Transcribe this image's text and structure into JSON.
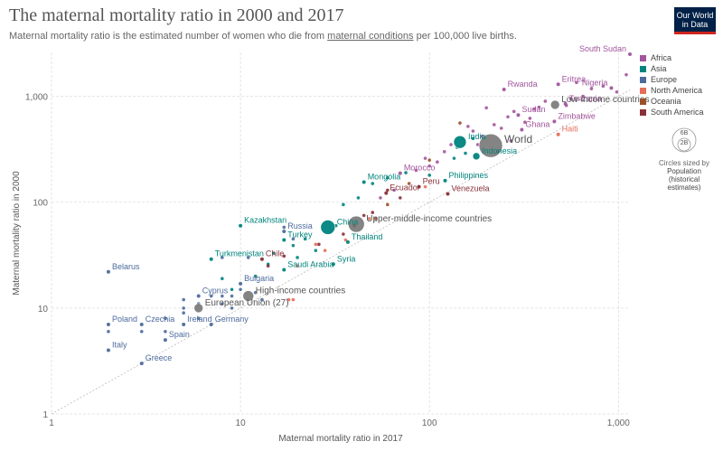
{
  "header": {
    "title": "The maternal mortality ratio in 2000 and 2017",
    "subtitle_pre": "Maternal mortality ratio is the estimated number of women who die from ",
    "subtitle_link": "maternal conditions",
    "subtitle_post": " per 100,000 live births.",
    "logo_line1": "Our World",
    "logo_line2": "in Data"
  },
  "legend": {
    "items": [
      {
        "label": "Africa",
        "color": "#a2559c"
      },
      {
        "label": "Asia",
        "color": "#00847e"
      },
      {
        "label": "Europe",
        "color": "#4c6a9c"
      },
      {
        "label": "North America",
        "color": "#e56e5a"
      },
      {
        "label": "Oceania",
        "color": "#9a5129"
      },
      {
        "label": "South America",
        "color": "#883039"
      }
    ],
    "size_big": "6B",
    "size_small": "2B",
    "size_note": "Circles sized by",
    "size_var_1": "Population",
    "size_var_2": "(historical",
    "size_var_3": "estimates)"
  },
  "chart_data": {
    "type": "scatter",
    "x_scale": "log",
    "y_scale": "log",
    "xlabel": "Maternal mortality ratio in 2017",
    "ylabel": "Maternal mortality ratio in 2000",
    "xlim": [
      1,
      1150
    ],
    "ylim": [
      1,
      2600
    ],
    "x_ticks": [
      {
        "v": 1,
        "label": "1"
      },
      {
        "v": 10,
        "label": "10"
      },
      {
        "v": 100,
        "label": "100"
      },
      {
        "v": 1000,
        "label": "1,000"
      }
    ],
    "y_ticks": [
      {
        "v": 1,
        "label": "1"
      },
      {
        "v": 10,
        "label": "10"
      },
      {
        "v": 100,
        "label": "100"
      },
      {
        "v": 1000,
        "label": "1,000"
      }
    ],
    "reference_line": "y = x",
    "labeled_points": [
      {
        "name": "South Sudan",
        "x": 1150,
        "y": 2500,
        "region": "Africa",
        "label": true
      },
      {
        "name": "Eritrea",
        "x": 480,
        "y": 1300,
        "region": "Africa",
        "label": true
      },
      {
        "name": "Nigeria",
        "x": 917,
        "y": 1200,
        "region": "Africa",
        "label": true
      },
      {
        "name": "Rwanda",
        "x": 248,
        "y": 1160,
        "region": "Africa",
        "label": true
      },
      {
        "name": "Tanzania",
        "x": 524,
        "y": 850,
        "region": "Africa",
        "label": true
      },
      {
        "name": "Low-income countries",
        "x": 462,
        "y": 833,
        "region": "Aggregate",
        "label": true,
        "size": 5
      },
      {
        "name": "Sudan",
        "x": 295,
        "y": 667,
        "region": "Africa",
        "label": true
      },
      {
        "name": "Zimbabwe",
        "x": 458,
        "y": 579,
        "region": "Africa",
        "label": true
      },
      {
        "name": "Ghana",
        "x": 308,
        "y": 484,
        "region": "Africa",
        "label": true
      },
      {
        "name": "Haiti",
        "x": 480,
        "y": 437,
        "region": "North America",
        "label": true
      },
      {
        "name": "World",
        "x": 211,
        "y": 342,
        "region": "Aggregate",
        "label": true,
        "size": 13
      },
      {
        "name": "India",
        "x": 145,
        "y": 370,
        "region": "Asia",
        "label": true,
        "size": 7
      },
      {
        "name": "Indonesia",
        "x": 177,
        "y": 272,
        "region": "Asia",
        "label": true,
        "size": 4
      },
      {
        "name": "Morocco",
        "x": 70,
        "y": 188,
        "region": "Africa",
        "label": true
      },
      {
        "name": "Mongolia",
        "x": 45,
        "y": 155,
        "region": "Asia",
        "label": true
      },
      {
        "name": "Philippines",
        "x": 121,
        "y": 160,
        "region": "Asia",
        "label": true
      },
      {
        "name": "Peru",
        "x": 88,
        "y": 140,
        "region": "South America",
        "label": true
      },
      {
        "name": "Ecuador",
        "x": 59,
        "y": 122,
        "region": "South America",
        "label": true
      },
      {
        "name": "Venezuela",
        "x": 125,
        "y": 120,
        "region": "South America",
        "label": true
      },
      {
        "name": "Upper-middle-income countries",
        "x": 41,
        "y": 62,
        "region": "Aggregate",
        "label": true,
        "size": 9
      },
      {
        "name": "China",
        "x": 29,
        "y": 58,
        "region": "Asia",
        "label": true,
        "size": 8
      },
      {
        "name": "Kazakhstan",
        "x": 10,
        "y": 60,
        "region": "Asia",
        "label": true
      },
      {
        "name": "Russia",
        "x": 17,
        "y": 53,
        "region": "Europe",
        "label": true
      },
      {
        "name": "Turkey",
        "x": 17,
        "y": 44,
        "region": "Asia",
        "label": true
      },
      {
        "name": "Thailand",
        "x": 37,
        "y": 42,
        "region": "Asia",
        "label": true
      },
      {
        "name": "Chile",
        "x": 13,
        "y": 29,
        "region": "South America",
        "label": true
      },
      {
        "name": "Turkmenistan",
        "x": 7,
        "y": 29,
        "region": "Asia",
        "label": true
      },
      {
        "name": "Syria",
        "x": 31,
        "y": 26,
        "region": "Asia",
        "label": true
      },
      {
        "name": "Saudi Arabia",
        "x": 17,
        "y": 23,
        "region": "Asia",
        "label": true
      },
      {
        "name": "Belarus",
        "x": 2,
        "y": 22,
        "region": "Europe",
        "label": true
      },
      {
        "name": "Bulgaria",
        "x": 10,
        "y": 17,
        "region": "Europe",
        "label": true
      },
      {
        "name": "High-income countries",
        "x": 11,
        "y": 13,
        "region": "Aggregate",
        "label": true,
        "size": 6
      },
      {
        "name": "Cyprus",
        "x": 6,
        "y": 13,
        "region": "Europe",
        "label": true
      },
      {
        "name": "European Union (27)",
        "x": 6,
        "y": 10,
        "region": "Aggregate",
        "label": true,
        "size": 5
      },
      {
        "name": "Poland",
        "x": 2,
        "y": 7,
        "region": "Europe",
        "label": true
      },
      {
        "name": "Czechia",
        "x": 3,
        "y": 7,
        "region": "Europe",
        "label": true
      },
      {
        "name": "Ireland",
        "x": 5,
        "y": 7,
        "region": "Europe",
        "label": true
      },
      {
        "name": "Germany",
        "x": 7,
        "y": 7,
        "region": "Europe",
        "label": true
      },
      {
        "name": "Spain",
        "x": 4,
        "y": 5,
        "region": "Europe",
        "label": true
      },
      {
        "name": "Italy",
        "x": 2,
        "y": 4,
        "region": "Europe",
        "label": true
      },
      {
        "name": "Greece",
        "x": 3,
        "y": 3,
        "region": "Europe",
        "label": true
      }
    ],
    "unlabeled_points": [
      {
        "x": 1100,
        "y": 1600,
        "region": "Africa"
      },
      {
        "x": 980,
        "y": 1100,
        "region": "Africa"
      },
      {
        "x": 830,
        "y": 1250,
        "region": "Africa"
      },
      {
        "x": 720,
        "y": 1180,
        "region": "Africa"
      },
      {
        "x": 650,
        "y": 1000,
        "region": "Africa"
      },
      {
        "x": 600,
        "y": 1350,
        "region": "Africa"
      },
      {
        "x": 560,
        "y": 950,
        "region": "Africa"
      },
      {
        "x": 530,
        "y": 820,
        "region": "Africa"
      },
      {
        "x": 410,
        "y": 900,
        "region": "Africa"
      },
      {
        "x": 380,
        "y": 790,
        "region": "Africa"
      },
      {
        "x": 360,
        "y": 760,
        "region": "Africa"
      },
      {
        "x": 340,
        "y": 620,
        "region": "Africa"
      },
      {
        "x": 320,
        "y": 570,
        "region": "Africa"
      },
      {
        "x": 280,
        "y": 720,
        "region": "Africa"
      },
      {
        "x": 260,
        "y": 640,
        "region": "Africa"
      },
      {
        "x": 240,
        "y": 500,
        "region": "Africa"
      },
      {
        "x": 220,
        "y": 540,
        "region": "Africa"
      },
      {
        "x": 200,
        "y": 780,
        "region": "Africa"
      },
      {
        "x": 190,
        "y": 420,
        "region": "Africa"
      },
      {
        "x": 170,
        "y": 470,
        "region": "Africa"
      },
      {
        "x": 160,
        "y": 520,
        "region": "Africa"
      },
      {
        "x": 150,
        "y": 400,
        "region": "Africa"
      },
      {
        "x": 130,
        "y": 350,
        "region": "Africa"
      },
      {
        "x": 120,
        "y": 300,
        "region": "Africa"
      },
      {
        "x": 110,
        "y": 240,
        "region": "Africa"
      },
      {
        "x": 100,
        "y": 220,
        "region": "Africa"
      },
      {
        "x": 95,
        "y": 260,
        "region": "Africa"
      },
      {
        "x": 85,
        "y": 200,
        "region": "Africa"
      },
      {
        "x": 65,
        "y": 130,
        "region": "Africa"
      },
      {
        "x": 55,
        "y": 110,
        "region": "Africa"
      },
      {
        "x": 270,
        "y": 380,
        "region": "Africa"
      },
      {
        "x": 230,
        "y": 300,
        "region": "Africa"
      },
      {
        "x": 180,
        "y": 350,
        "region": "Africa"
      },
      {
        "x": 140,
        "y": 330,
        "region": "Asia"
      },
      {
        "x": 170,
        "y": 400,
        "region": "Asia"
      },
      {
        "x": 155,
        "y": 290,
        "region": "Asia"
      },
      {
        "x": 135,
        "y": 260,
        "region": "Asia"
      },
      {
        "x": 100,
        "y": 180,
        "region": "Asia"
      },
      {
        "x": 75,
        "y": 190,
        "region": "Asia"
      },
      {
        "x": 60,
        "y": 170,
        "region": "Asia"
      },
      {
        "x": 50,
        "y": 150,
        "region": "Asia"
      },
      {
        "x": 42,
        "y": 110,
        "region": "Asia"
      },
      {
        "x": 35,
        "y": 95,
        "region": "Asia"
      },
      {
        "x": 32,
        "y": 60,
        "region": "Asia"
      },
      {
        "x": 25,
        "y": 35,
        "region": "Asia"
      },
      {
        "x": 22,
        "y": 45,
        "region": "Asia"
      },
      {
        "x": 20,
        "y": 30,
        "region": "Asia"
      },
      {
        "x": 19,
        "y": 39,
        "region": "Asia"
      },
      {
        "x": 15,
        "y": 33,
        "region": "Asia"
      },
      {
        "x": 12,
        "y": 20,
        "region": "Asia"
      },
      {
        "x": 9,
        "y": 15,
        "region": "Asia"
      },
      {
        "x": 8,
        "y": 19,
        "region": "Asia"
      },
      {
        "x": 14,
        "y": 26,
        "region": "Asia"
      },
      {
        "x": 5,
        "y": 9,
        "region": "Europe"
      },
      {
        "x": 5,
        "y": 10,
        "region": "Europe"
      },
      {
        "x": 5,
        "y": 12,
        "region": "Europe"
      },
      {
        "x": 6,
        "y": 8,
        "region": "Europe"
      },
      {
        "x": 4,
        "y": 8,
        "region": "Europe"
      },
      {
        "x": 4,
        "y": 6,
        "region": "Europe"
      },
      {
        "x": 3,
        "y": 6,
        "region": "Europe"
      },
      {
        "x": 2,
        "y": 6,
        "region": "Europe"
      },
      {
        "x": 8,
        "y": 11,
        "region": "Europe"
      },
      {
        "x": 8,
        "y": 13,
        "region": "Europe"
      },
      {
        "x": 9,
        "y": 13,
        "region": "Europe"
      },
      {
        "x": 7,
        "y": 13,
        "region": "Europe"
      },
      {
        "x": 10,
        "y": 15,
        "region": "Europe"
      },
      {
        "x": 12,
        "y": 14,
        "region": "Europe"
      },
      {
        "x": 13,
        "y": 12,
        "region": "Europe"
      },
      {
        "x": 9,
        "y": 10,
        "region": "Europe"
      },
      {
        "x": 6,
        "y": 11,
        "region": "Europe"
      },
      {
        "x": 17,
        "y": 58,
        "region": "Europe"
      },
      {
        "x": 11,
        "y": 30,
        "region": "Europe"
      },
      {
        "x": 8,
        "y": 30,
        "region": "Europe"
      },
      {
        "x": 19,
        "y": 45,
        "region": "Europe"
      },
      {
        "x": 19,
        "y": 12,
        "region": "North America"
      },
      {
        "x": 18,
        "y": 12,
        "region": "North America"
      },
      {
        "x": 25,
        "y": 40,
        "region": "North America"
      },
      {
        "x": 28,
        "y": 35,
        "region": "North America"
      },
      {
        "x": 36,
        "y": 44,
        "region": "North America"
      },
      {
        "x": 48,
        "y": 70,
        "region": "North America"
      },
      {
        "x": 30,
        "y": 52,
        "region": "North America"
      },
      {
        "x": 95,
        "y": 140,
        "region": "North America"
      },
      {
        "x": 20,
        "y": 25,
        "region": "North America"
      },
      {
        "x": 78,
        "y": 150,
        "region": "Oceania"
      },
      {
        "x": 100,
        "y": 250,
        "region": "Oceania"
      },
      {
        "x": 145,
        "y": 560,
        "region": "Oceania"
      },
      {
        "x": 52,
        "y": 70,
        "region": "Oceania"
      },
      {
        "x": 60,
        "y": 95,
        "region": "Oceania"
      },
      {
        "x": 50,
        "y": 80,
        "region": "South America"
      },
      {
        "x": 45,
        "y": 75,
        "region": "South America"
      },
      {
        "x": 70,
        "y": 110,
        "region": "South America"
      },
      {
        "x": 40,
        "y": 60,
        "region": "South America"
      },
      {
        "x": 35,
        "y": 50,
        "region": "South America"
      },
      {
        "x": 60,
        "y": 130,
        "region": "South America"
      },
      {
        "x": 17,
        "y": 31,
        "region": "South America"
      },
      {
        "x": 26,
        "y": 40,
        "region": "South America"
      },
      {
        "x": 14,
        "y": 25,
        "region": "South America"
      }
    ]
  }
}
